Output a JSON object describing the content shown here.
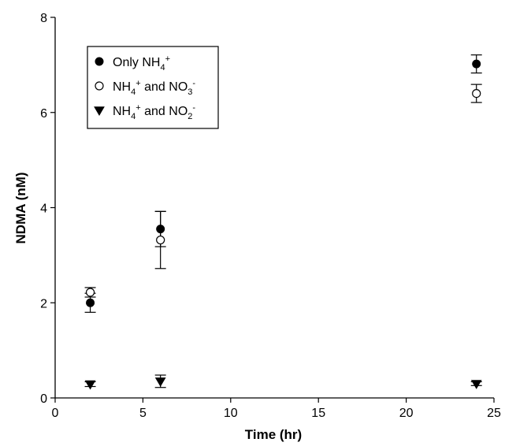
{
  "chart_data": {
    "type": "scatter",
    "xlabel": "Time (hr)",
    "ylabel": "NDMA (nM)",
    "xlim": [
      0,
      25
    ],
    "ylim": [
      0,
      8
    ],
    "x_ticks": [
      0,
      5,
      10,
      15,
      20,
      25
    ],
    "y_ticks": [
      0,
      2,
      4,
      6,
      8
    ],
    "grid": false,
    "legend_position": "top-left",
    "series": [
      {
        "name": "Only NH4+",
        "label_parts": [
          [
            "Only NH",
            ""
          ],
          [
            "4",
            "sub"
          ],
          [
            "+",
            "sup"
          ]
        ],
        "marker": "filled-circle",
        "color": "#000000",
        "points": [
          {
            "x": 2,
            "y": 2.0,
            "err": 0.2
          },
          {
            "x": 6,
            "y": 3.55,
            "err": 0.37
          },
          {
            "x": 24,
            "y": 7.02,
            "err": 0.19
          }
        ]
      },
      {
        "name": "NH4+ and NO3-",
        "label_parts": [
          [
            "NH",
            ""
          ],
          [
            "4",
            "sub"
          ],
          [
            "+",
            "sup"
          ],
          [
            " and NO",
            ""
          ],
          [
            "3",
            "sub"
          ],
          [
            "-",
            "sup"
          ]
        ],
        "marker": "open-circle",
        "color": "#000000",
        "points": [
          {
            "x": 2,
            "y": 2.22,
            "err": 0.1
          },
          {
            "x": 6,
            "y": 3.32,
            "err": 0.6
          },
          {
            "x": 24,
            "y": 6.4,
            "err": 0.19
          }
        ]
      },
      {
        "name": "NH4+ and NO2-",
        "label_parts": [
          [
            "NH",
            ""
          ],
          [
            "4",
            "sub"
          ],
          [
            "+",
            "sup"
          ],
          [
            " and NO",
            ""
          ],
          [
            "2",
            "sub"
          ],
          [
            "-",
            "sup"
          ]
        ],
        "marker": "filled-triangle-down",
        "color": "#000000",
        "points": [
          {
            "x": 2,
            "y": 0.29,
            "err": 0.05
          },
          {
            "x": 6,
            "y": 0.35,
            "err": 0.13
          },
          {
            "x": 24,
            "y": 0.3,
            "err": 0.04
          }
        ]
      }
    ]
  }
}
